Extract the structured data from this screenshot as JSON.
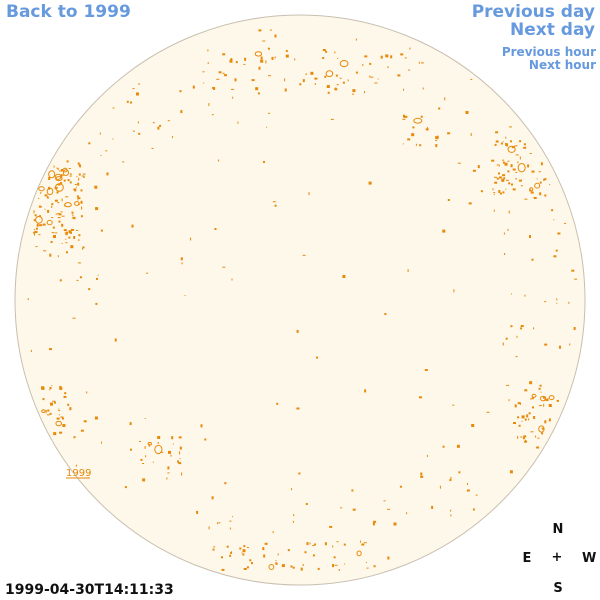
{
  "nav": {
    "back_label": "Back to 1999",
    "prev_day_label": "Previous day",
    "next_day_label": "Next day",
    "prev_hour_label": "Previous hour",
    "next_hour_label": "Next hour"
  },
  "timestamp": "1999-04-30T14:11:33",
  "disk_label": "1999",
  "compass": {
    "n": "N",
    "e": "E",
    "center": "+",
    "w": "W",
    "s": "S"
  },
  "colors": {
    "disk_fill": "#fdf8ea",
    "disk_stroke": "#c9bfb0",
    "feature": "#e8890a",
    "nav": "#6699dd"
  }
}
